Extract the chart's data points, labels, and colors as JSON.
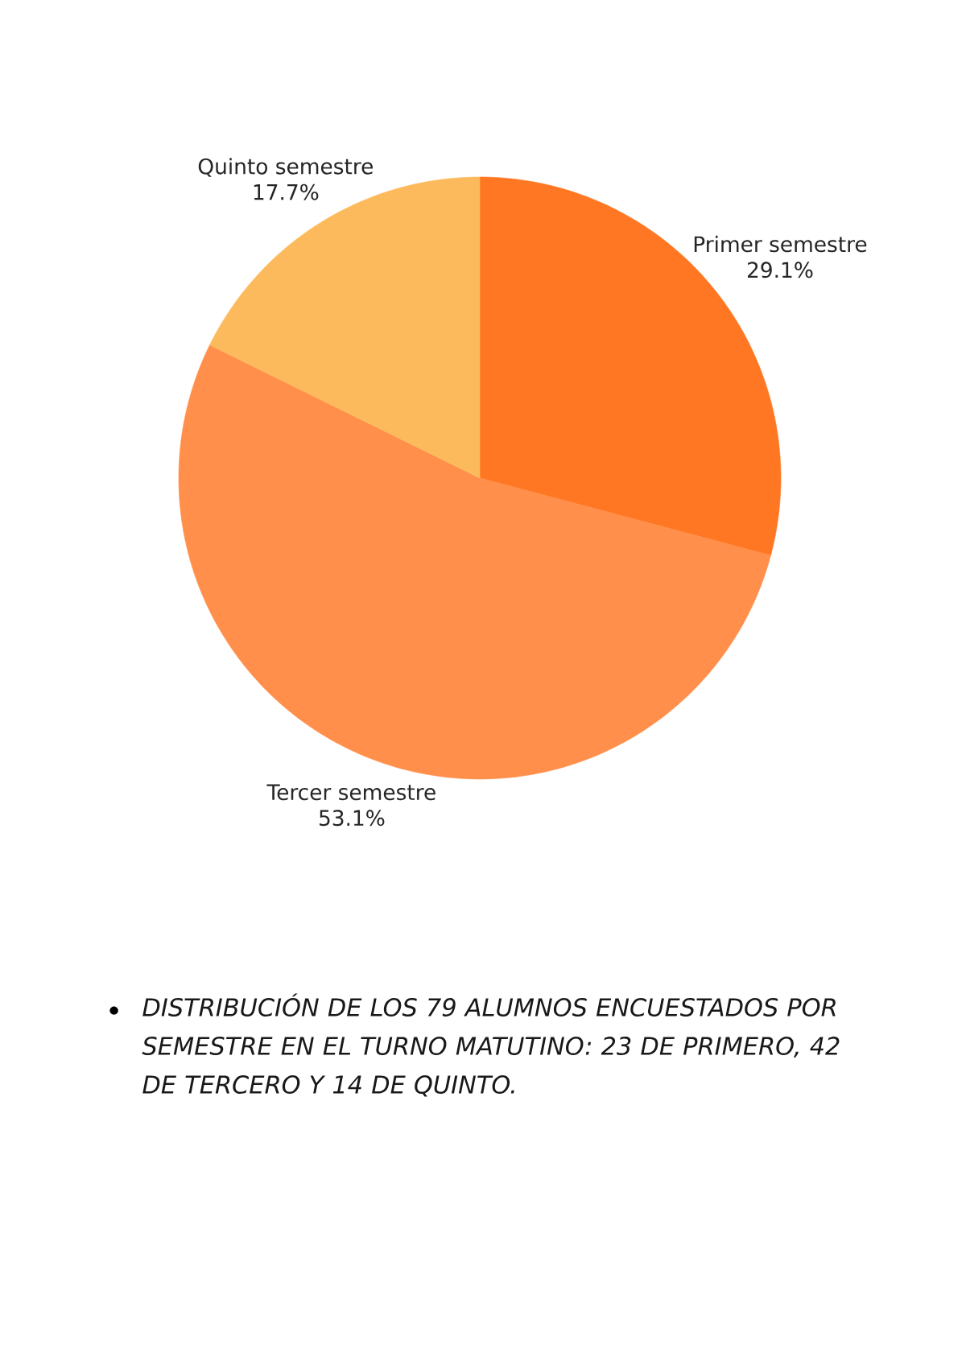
{
  "chart_data": {
    "type": "pie",
    "categories": [
      "Primer semestre",
      "Tercer semestre",
      "Quinto semestre"
    ],
    "values": [
      29.1,
      53.1,
      17.7
    ],
    "value_labels": [
      "29.1%",
      "53.1%",
      "17.7%"
    ],
    "colors": [
      "#ff7722",
      "#ff8f4a",
      "#fdba5c"
    ],
    "annotations": [
      "DISTRIBUCIÓN DE LOS 79 ALUMNOS ENCUESTADOS POR SEMESTRE EN EL TURNO MATUTINO: 23 DE PRIMERO, 42 DE TERCERO Y 14 DE QUINTO."
    ]
  }
}
